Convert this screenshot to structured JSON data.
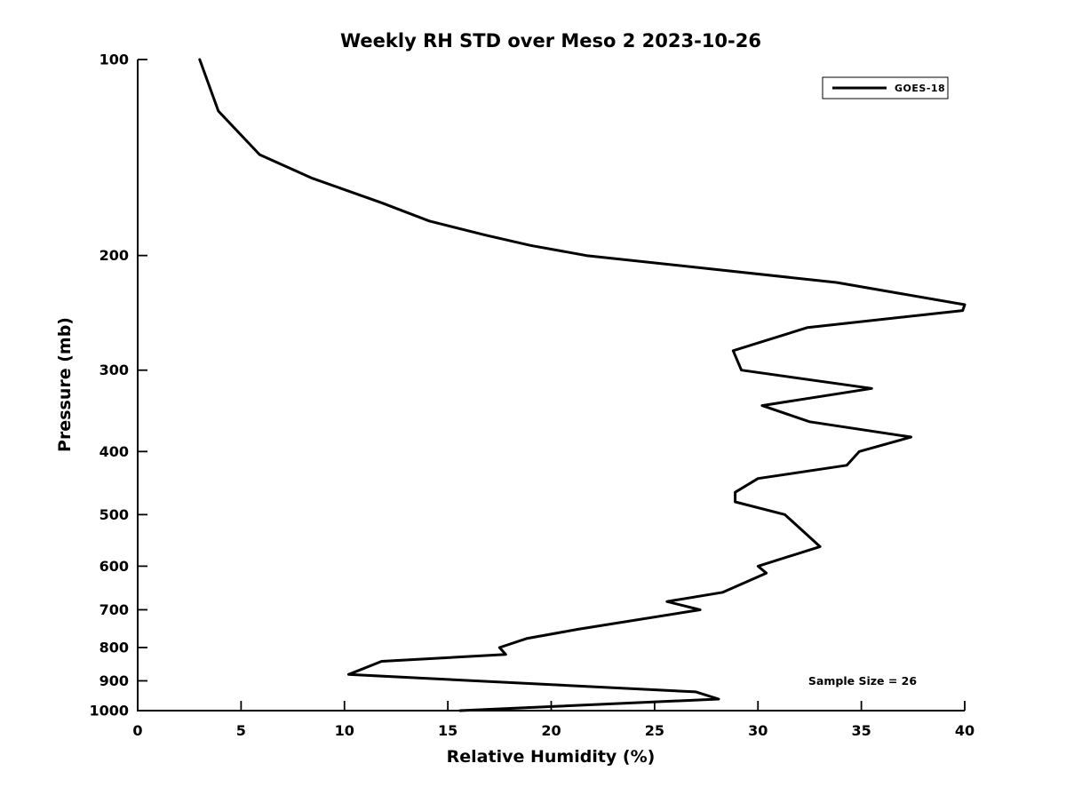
{
  "chart_data": {
    "type": "line",
    "title": "Weekly RH STD over Meso 2 2023-10-26",
    "xlabel": "Relative Humidity (%)",
    "ylabel": "Pressure (mb)",
    "grid": false,
    "background_color": "#ffffff",
    "line_color": "#000000",
    "x_axis": {
      "min": 0,
      "max": 40,
      "scale": "linear",
      "ticks": [
        0,
        5,
        10,
        15,
        20,
        25,
        30,
        35,
        40
      ]
    },
    "y_axis": {
      "min": 100,
      "max": 1000,
      "scale": "log",
      "inverted": true,
      "ticks": [
        100,
        200,
        300,
        400,
        500,
        600,
        700,
        800,
        900,
        1000
      ]
    },
    "legend": {
      "position": "upper right",
      "entries": [
        {
          "label": "GOES-18",
          "color": "#000000"
        }
      ]
    },
    "annotation": {
      "text": "Sample Size = 26"
    },
    "point_columns": [
      "pressure_mb",
      "rh_percent"
    ],
    "series": [
      {
        "name": "GOES-18",
        "color": "#000000",
        "line_width": 3,
        "points": [
          [
            100,
            3.0
          ],
          [
            120,
            3.9
          ],
          [
            140,
            5.9
          ],
          [
            152,
            8.4
          ],
          [
            166,
            11.8
          ],
          [
            177,
            14.1
          ],
          [
            186,
            16.8
          ],
          [
            193,
            19.0
          ],
          [
            200,
            21.7
          ],
          [
            220,
            33.8
          ],
          [
            238,
            40.0
          ],
          [
            243,
            39.9
          ],
          [
            258,
            32.4
          ],
          [
            280,
            28.8
          ],
          [
            300,
            29.2
          ],
          [
            320,
            35.5
          ],
          [
            340,
            30.2
          ],
          [
            360,
            32.5
          ],
          [
            380,
            37.4
          ],
          [
            400,
            34.9
          ],
          [
            420,
            34.3
          ],
          [
            440,
            30.0
          ],
          [
            462,
            28.9
          ],
          [
            478,
            28.9
          ],
          [
            500,
            31.3
          ],
          [
            560,
            33.0
          ],
          [
            600,
            30.0
          ],
          [
            615,
            30.4
          ],
          [
            658,
            28.3
          ],
          [
            680,
            25.6
          ],
          [
            700,
            27.2
          ],
          [
            750,
            21.3
          ],
          [
            775,
            18.8
          ],
          [
            800,
            17.5
          ],
          [
            820,
            17.8
          ],
          [
            840,
            11.8
          ],
          [
            880,
            10.2
          ],
          [
            936,
            27.0
          ],
          [
            960,
            28.1
          ],
          [
            1000,
            15.6
          ]
        ]
      }
    ]
  }
}
